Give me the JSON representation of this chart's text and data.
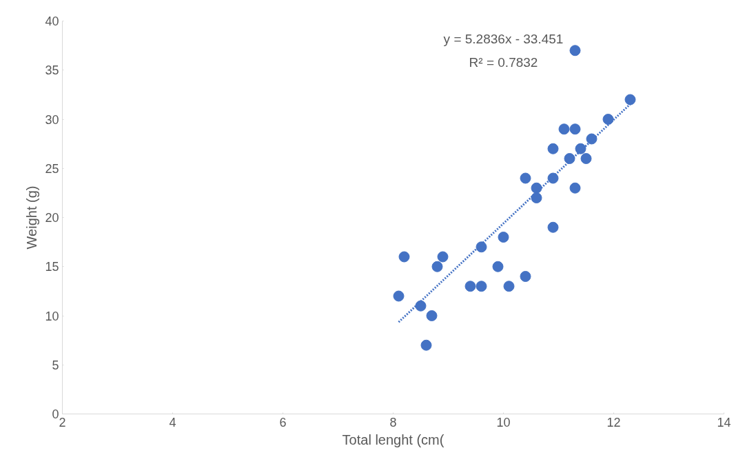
{
  "chart_data": {
    "type": "scatter",
    "xlabel": "Total lenght (cm(",
    "ylabel": "Weight (g)",
    "xlim": [
      2,
      14
    ],
    "ylim": [
      0,
      40
    ],
    "xticks": [
      2,
      4,
      6,
      8,
      10,
      12,
      14
    ],
    "yticks": [
      0,
      5,
      10,
      15,
      20,
      25,
      30,
      35,
      40
    ],
    "grid": false,
    "marker": "circle",
    "annotations": [
      "y = 5.2836x - 33.451",
      "R² = 0.7832"
    ],
    "series": [
      {
        "color": "#4472c4",
        "x": [
          8.1,
          8.2,
          8.5,
          8.6,
          8.7,
          8.8,
          8.9,
          9.4,
          9.6,
          9.6,
          9.9,
          10.0,
          10.1,
          10.4,
          10.4,
          10.6,
          10.6,
          10.9,
          10.9,
          10.9,
          11.1,
          11.2,
          11.3,
          11.3,
          11.3,
          11.4,
          11.5,
          11.6,
          11.9,
          12.3
        ],
        "values": [
          12,
          16,
          11,
          7,
          10,
          15,
          16,
          13,
          13,
          17,
          15,
          18,
          13,
          14,
          24,
          23,
          22,
          19,
          24,
          27,
          29,
          26,
          29,
          23,
          37,
          27,
          26,
          28,
          30,
          32
        ]
      },
      {
        "type": "line",
        "color": "#4472c4",
        "line_style": "dotted",
        "marker": "none",
        "x": [
          8.1,
          12.3
        ],
        "values": [
          9.35,
          31.54
        ]
      }
    ]
  }
}
